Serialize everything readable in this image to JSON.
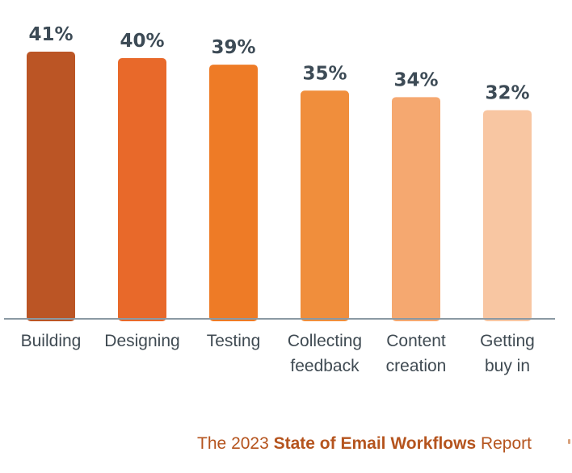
{
  "chart_data": {
    "type": "bar",
    "categories": [
      [
        "Building"
      ],
      [
        "Designing"
      ],
      [
        "Testing"
      ],
      [
        "Collecting",
        "feedback"
      ],
      [
        "Content",
        "creation"
      ],
      [
        "Getting",
        "buy in"
      ]
    ],
    "values": [
      41,
      40,
      39,
      35,
      34,
      32
    ],
    "value_labels": [
      "41%",
      "40%",
      "39%",
      "35%",
      "34%",
      "32%"
    ],
    "colors": [
      "#bb5525",
      "#e8692a",
      "#ee7b26",
      "#f08e3c",
      "#f5a870",
      "#f8c6a2"
    ],
    "ylim": [
      0,
      41
    ],
    "axis_color": "#8b99a3",
    "grid": false
  },
  "footer": {
    "prefix": "The 2023 ",
    "bold": "State of Email Workflows",
    "suffix": " Report"
  }
}
